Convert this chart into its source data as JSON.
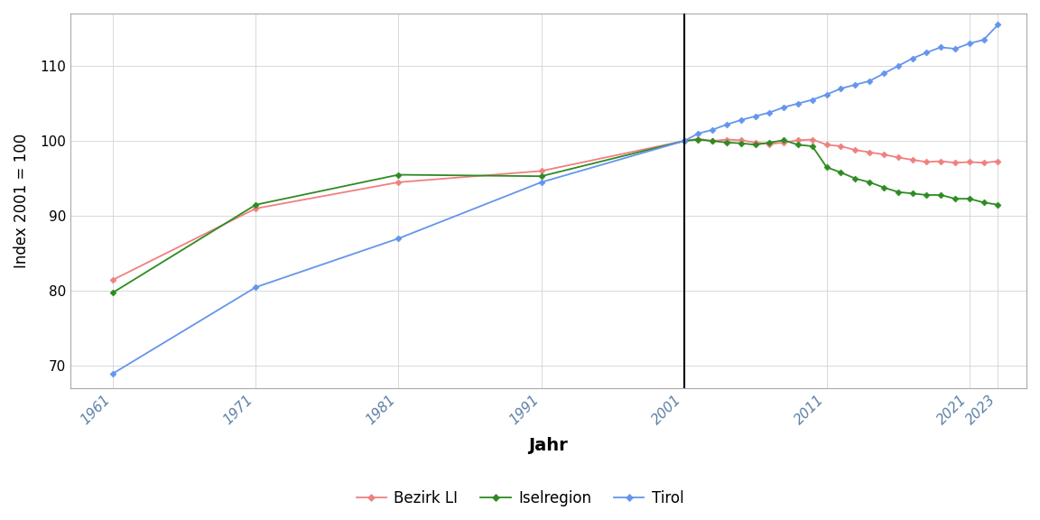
{
  "title": "",
  "xlabel": "Jahr",
  "ylabel": "Index 2001 = 100",
  "ylim": [
    67,
    117
  ],
  "yticks": [
    70,
    80,
    90,
    100,
    110
  ],
  "vline_x": 2001,
  "background_color": "#ffffff",
  "panel_color": "#ffffff",
  "grid_color": "#d3d3d3",
  "series": {
    "Bezirk LI": {
      "color": "#F08080",
      "marker": "D",
      "markersize": 3.5,
      "linewidth": 1.3,
      "years": [
        1961,
        1971,
        1981,
        1991,
        2001,
        2002,
        2003,
        2004,
        2005,
        2006,
        2007,
        2008,
        2009,
        2010,
        2011,
        2012,
        2013,
        2014,
        2015,
        2016,
        2017,
        2018,
        2019,
        2020,
        2021,
        2022,
        2023
      ],
      "values": [
        81.5,
        91.0,
        94.5,
        96.0,
        100.0,
        100.3,
        100.0,
        100.2,
        100.1,
        99.8,
        99.6,
        99.8,
        100.1,
        100.2,
        99.5,
        99.3,
        98.8,
        98.5,
        98.2,
        97.8,
        97.5,
        97.2,
        97.3,
        97.1,
        97.2,
        97.1,
        97.3
      ]
    },
    "Iselregion": {
      "color": "#2E8B22",
      "marker": "D",
      "markersize": 3.5,
      "linewidth": 1.3,
      "years": [
        1961,
        1971,
        1981,
        1991,
        2001,
        2002,
        2003,
        2004,
        2005,
        2006,
        2007,
        2008,
        2009,
        2010,
        2011,
        2012,
        2013,
        2014,
        2015,
        2016,
        2017,
        2018,
        2019,
        2020,
        2021,
        2022,
        2023
      ],
      "values": [
        79.8,
        91.5,
        95.5,
        95.3,
        100.0,
        100.2,
        100.0,
        99.8,
        99.7,
        99.5,
        99.8,
        100.1,
        99.5,
        99.3,
        96.5,
        95.8,
        95.0,
        94.5,
        93.8,
        93.2,
        93.0,
        92.8,
        92.8,
        92.3,
        92.3,
        91.8,
        91.5
      ]
    },
    "Tirol": {
      "color": "#6495ED",
      "marker": "D",
      "markersize": 3.5,
      "linewidth": 1.3,
      "years": [
        1961,
        1971,
        1981,
        1991,
        2001,
        2002,
        2003,
        2004,
        2005,
        2006,
        2007,
        2008,
        2009,
        2010,
        2011,
        2012,
        2013,
        2014,
        2015,
        2016,
        2017,
        2018,
        2019,
        2020,
        2021,
        2022,
        2023
      ],
      "values": [
        69.0,
        80.5,
        87.0,
        94.5,
        100.0,
        101.0,
        101.5,
        102.2,
        102.8,
        103.3,
        103.8,
        104.5,
        105.0,
        105.5,
        106.2,
        107.0,
        107.5,
        108.0,
        109.0,
        110.0,
        111.0,
        111.8,
        112.5,
        112.3,
        113.0,
        113.5,
        115.5
      ]
    }
  },
  "xticks": [
    1961,
    1971,
    1981,
    1991,
    2001,
    2011,
    2021,
    2023
  ],
  "xlim": [
    1958,
    2025
  ]
}
